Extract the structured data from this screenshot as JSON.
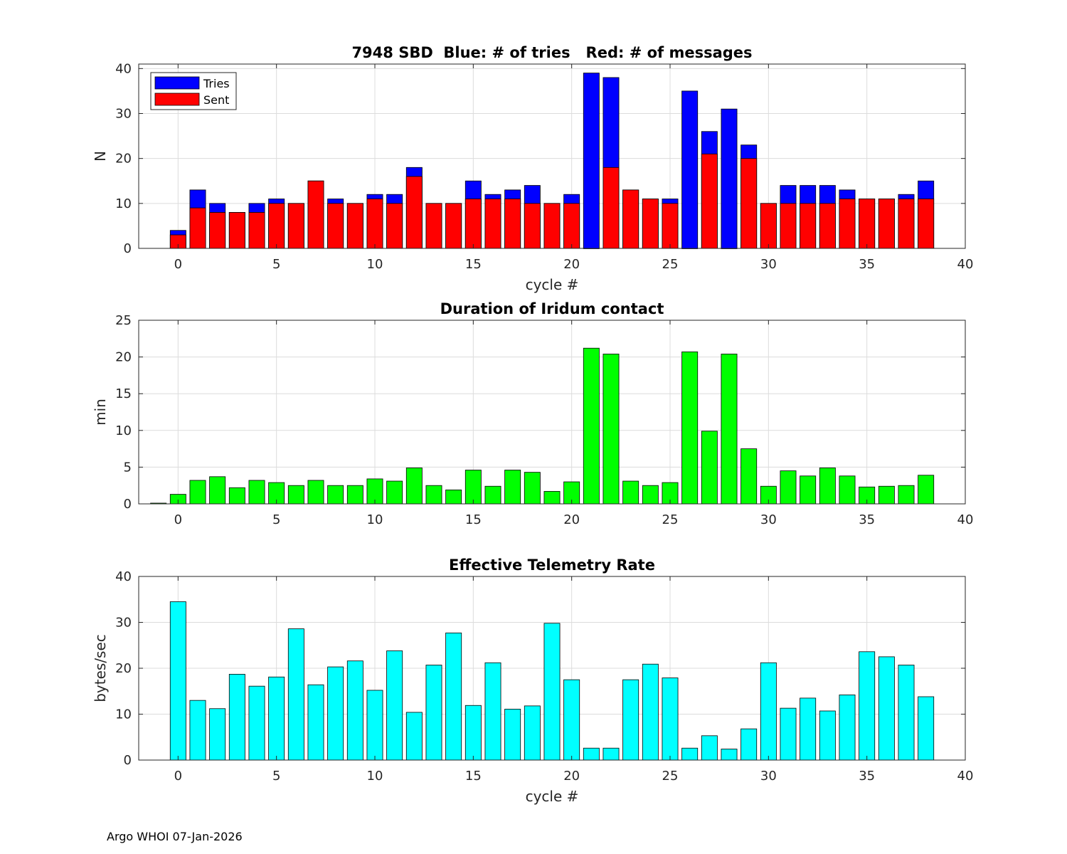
{
  "footer": "Argo WHOI 07-Jan-2026",
  "colors": {
    "tries": "#0000ff",
    "sent": "#ff0000",
    "duration": "#00ff00",
    "rate": "#00ffff",
    "grid": "#dcdcdc",
    "axis": "#262626"
  },
  "chart_data": [
    {
      "type": "bar",
      "title": "7948 SBD  Blue: # of tries   Red: # of messages",
      "xlabel": "cycle #",
      "ylabel": "N",
      "xlim": [
        -2,
        40
      ],
      "ylim": [
        0,
        41
      ],
      "xticks": [
        0,
        5,
        10,
        15,
        20,
        25,
        30,
        35,
        40
      ],
      "yticks": [
        0,
        10,
        20,
        30,
        40
      ],
      "grid": true,
      "legend": {
        "position": "top-left",
        "entries": [
          "Tries",
          "Sent"
        ]
      },
      "x": [
        0,
        1,
        2,
        3,
        4,
        5,
        6,
        7,
        8,
        9,
        10,
        11,
        12,
        13,
        14,
        15,
        16,
        17,
        18,
        19,
        20,
        21,
        22,
        23,
        24,
        25,
        26,
        27,
        28,
        29,
        30,
        31,
        32,
        33,
        34,
        35,
        36,
        37,
        38
      ],
      "series": [
        {
          "name": "Tries",
          "color": "#0000ff",
          "values": [
            4,
            13,
            10,
            8,
            10,
            11,
            10,
            15,
            11,
            10,
            12,
            12,
            18,
            10,
            10,
            15,
            12,
            13,
            14,
            10,
            12,
            39,
            38,
            13,
            11,
            11,
            35,
            26,
            31,
            23,
            10,
            14,
            14,
            14,
            13,
            11,
            11,
            12,
            15
          ]
        },
        {
          "name": "Sent",
          "color": "#ff0000",
          "values": [
            3,
            9,
            8,
            8,
            8,
            10,
            10,
            15,
            10,
            10,
            11,
            10,
            16,
            10,
            10,
            11,
            11,
            11,
            10,
            10,
            10,
            0,
            18,
            13,
            11,
            10,
            0,
            21,
            0,
            20,
            10,
            10,
            10,
            10,
            11,
            11,
            11,
            11,
            11
          ]
        }
      ]
    },
    {
      "type": "bar",
      "title": "Duration of Iridum contact",
      "xlabel": "",
      "ylabel": "min",
      "xlim": [
        -2,
        40
      ],
      "ylim": [
        0,
        25
      ],
      "xticks": [
        0,
        5,
        10,
        15,
        20,
        25,
        30,
        35,
        40
      ],
      "yticks": [
        0,
        5,
        10,
        15,
        20,
        25
      ],
      "grid": true,
      "x": [
        -1,
        0,
        1,
        2,
        3,
        4,
        5,
        6,
        7,
        8,
        9,
        10,
        11,
        12,
        13,
        14,
        15,
        16,
        17,
        18,
        19,
        20,
        21,
        22,
        23,
        24,
        25,
        26,
        27,
        28,
        29,
        30,
        31,
        32,
        33,
        34,
        35,
        36,
        37,
        38
      ],
      "series": [
        {
          "name": "Duration",
          "color": "#00ff00",
          "values": [
            0.1,
            1.3,
            3.2,
            3.7,
            2.2,
            3.2,
            2.9,
            2.5,
            3.2,
            2.5,
            2.5,
            3.4,
            3.1,
            4.9,
            2.5,
            1.9,
            4.6,
            2.4,
            4.6,
            4.3,
            1.7,
            3.0,
            21.2,
            20.4,
            3.1,
            2.5,
            2.9,
            20.7,
            9.9,
            20.4,
            7.5,
            2.4,
            4.5,
            3.8,
            4.9,
            3.8,
            2.3,
            2.4,
            2.5,
            3.9
          ]
        }
      ]
    },
    {
      "type": "bar",
      "title": "Effective Telemetry Rate",
      "xlabel": "cycle #",
      "ylabel": "bytes/sec",
      "xlim": [
        -2,
        40
      ],
      "ylim": [
        0,
        40
      ],
      "xticks": [
        0,
        5,
        10,
        15,
        20,
        25,
        30,
        35,
        40
      ],
      "yticks": [
        0,
        10,
        20,
        30,
        40
      ],
      "grid": true,
      "x": [
        0,
        1,
        2,
        3,
        4,
        5,
        6,
        7,
        8,
        9,
        10,
        11,
        12,
        13,
        14,
        15,
        16,
        17,
        18,
        19,
        20,
        21,
        22,
        23,
        24,
        25,
        26,
        27,
        28,
        29,
        30,
        31,
        32,
        33,
        34,
        35,
        36,
        37,
        38
      ],
      "series": [
        {
          "name": "Rate",
          "color": "#00ffff",
          "values": [
            34.5,
            13.0,
            11.2,
            18.7,
            16.1,
            18.1,
            28.6,
            16.4,
            20.3,
            21.6,
            15.2,
            23.8,
            10.4,
            20.7,
            27.7,
            11.9,
            21.2,
            11.1,
            11.8,
            29.8,
            17.5,
            2.6,
            2.6,
            17.5,
            20.9,
            17.9,
            2.6,
            5.3,
            2.4,
            6.8,
            21.2,
            11.3,
            13.5,
            10.7,
            14.2,
            23.6,
            22.5,
            20.7,
            13.8
          ]
        }
      ]
    }
  ]
}
